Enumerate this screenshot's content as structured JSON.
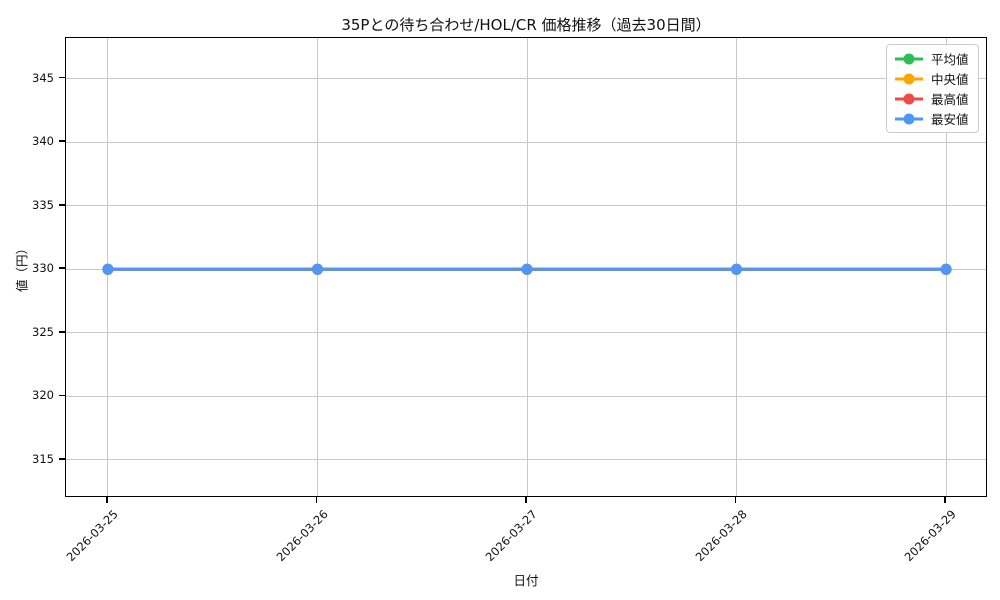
{
  "chart_data": {
    "type": "line",
    "title": "35Pとの待ち合わせ/HOL/CR 価格推移（過去30日間）",
    "xlabel": "日付",
    "ylabel": "値（円）",
    "categories": [
      "2026-03-25",
      "2026-03-26",
      "2026-03-27",
      "2026-03-28",
      "2026-03-29"
    ],
    "series": [
      {
        "name": "平均値",
        "color": "#2dbd56",
        "values": [
          330,
          330,
          330,
          330,
          330
        ]
      },
      {
        "name": "中央値",
        "color": "#ffa502",
        "values": [
          330,
          330,
          330,
          330,
          330
        ]
      },
      {
        "name": "最高値",
        "color": "#f14848",
        "values": [
          330,
          330,
          330,
          330,
          330
        ]
      },
      {
        "name": "最安値",
        "color": "#4f96f6",
        "values": [
          330,
          330,
          330,
          330,
          330
        ]
      }
    ],
    "yticks": [
      315,
      320,
      325,
      330,
      335,
      340,
      345
    ],
    "ylim": [
      312.0,
      348.2
    ],
    "x_margin": 0.2,
    "grid": true,
    "legend_position": "upper right"
  }
}
